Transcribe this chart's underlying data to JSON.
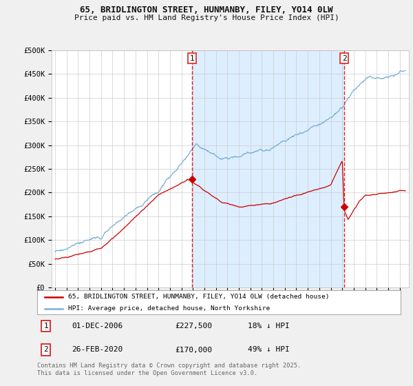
{
  "title1": "65, BRIDLINGTON STREET, HUNMANBY, FILEY, YO14 0LW",
  "title2": "Price paid vs. HM Land Registry's House Price Index (HPI)",
  "ylabel_ticks": [
    "£0",
    "£50K",
    "£100K",
    "£150K",
    "£200K",
    "£250K",
    "£300K",
    "£350K",
    "£400K",
    "£450K",
    "£500K"
  ],
  "ytick_values": [
    0,
    50000,
    100000,
    150000,
    200000,
    250000,
    300000,
    350000,
    400000,
    450000,
    500000
  ],
  "sale1_x": 2006.92,
  "sale1_price": 227500,
  "sale2_x": 2020.17,
  "sale2_price": 170000,
  "legend_red": "65, BRIDLINGTON STREET, HUNMANBY, FILEY, YO14 0LW (detached house)",
  "legend_blue": "HPI: Average price, detached house, North Yorkshire",
  "annotation1": [
    "1",
    "01-DEC-2006",
    "£227,500",
    "18% ↓ HPI"
  ],
  "annotation2": [
    "2",
    "26-FEB-2020",
    "£170,000",
    "49% ↓ HPI"
  ],
  "footnote": "Contains HM Land Registry data © Crown copyright and database right 2025.\nThis data is licensed under the Open Government Licence v3.0.",
  "bg_color": "#f0f0f0",
  "plot_bg": "#ffffff",
  "shade_color": "#ddeeff",
  "red_color": "#cc0000",
  "blue_color": "#7aafd4",
  "vline_color": "#dd2222",
  "grid_color": "#cccccc"
}
